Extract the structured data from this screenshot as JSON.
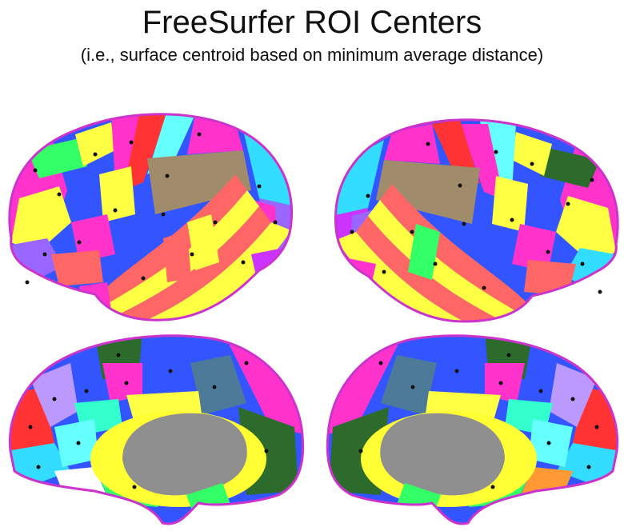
{
  "header": {
    "title": "FreeSurfer ROI Centers",
    "subtitle": "(i.e., surface centroid based on minimum average distance)"
  },
  "views": [
    {
      "name": "lateral-left-hemisphere"
    },
    {
      "name": "lateral-right-hemisphere"
    },
    {
      "name": "medial-left-hemisphere"
    },
    {
      "name": "medial-right-hemisphere"
    }
  ],
  "colors": {
    "medial_wall": "#8f8f8f",
    "cingulate": "#ffff33",
    "parcels": [
      "#ff33cc",
      "#3355ff",
      "#ffff44",
      "#ff6666",
      "#33ddff",
      "#33ff66",
      "#9966ff",
      "#ff9933",
      "#33ffcc",
      "#ff3333",
      "#cc33ff",
      "#66ffff",
      "#ffffff",
      "#4d7a99",
      "#2d6b2d",
      "#a08c6a",
      "#ffaacc",
      "#bb99ff",
      "#0033cc"
    ]
  }
}
